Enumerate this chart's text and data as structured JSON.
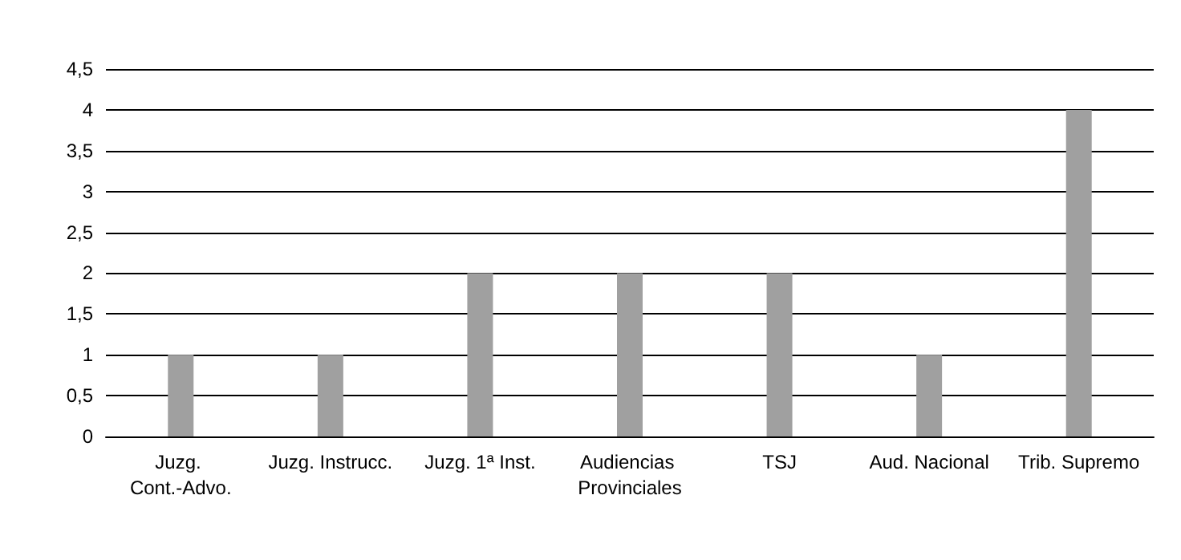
{
  "chart_data": {
    "type": "bar",
    "categories": [
      "Juzg. Cont.-Advo.",
      "Juzg. Instrucc.",
      "Juzg. 1ª Inst.",
      "Audiencias Provinciales",
      "TSJ",
      "Aud. Nacional",
      "Trib. Supremo"
    ],
    "values": [
      1,
      1,
      2,
      2,
      2,
      1,
      4
    ],
    "color": "#a0a0a0",
    "ylim": [
      0,
      4.5
    ],
    "yticks": [
      0,
      {
        "value": 0.5,
        "label": "0,5"
      },
      1,
      {
        "value": 1.5,
        "label": "1,5"
      },
      2,
      {
        "value": 2.5,
        "label": "2,5"
      },
      3,
      {
        "value": 3.5,
        "label": "3,5"
      },
      4,
      {
        "value": 4.5,
        "label": "4,5"
      }
    ],
    "grid": "y"
  }
}
